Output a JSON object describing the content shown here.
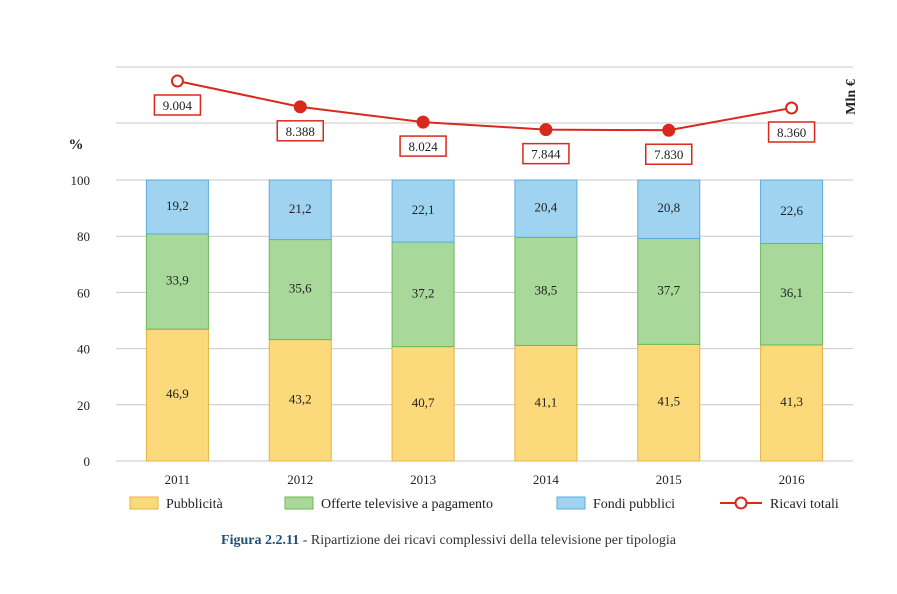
{
  "chart_data": {
    "type": "bar",
    "stacked": true,
    "categories": [
      "2011",
      "2012",
      "2013",
      "2014",
      "2015",
      "2016"
    ],
    "series": [
      {
        "name": "Pubblicità",
        "color": "#fcd97a",
        "stroke": "#e3b340",
        "values": [
          46.9,
          43.2,
          40.7,
          41.1,
          41.5,
          41.3
        ],
        "labels": [
          "46,9",
          "43,2",
          "40,7",
          "41,1",
          "41,5",
          "41,3"
        ]
      },
      {
        "name": "Offerte televisive a pagamento",
        "color": "#a8d89a",
        "stroke": "#6cb95a",
        "values": [
          33.9,
          35.6,
          37.2,
          38.5,
          37.7,
          36.1
        ],
        "labels": [
          "33,9",
          "35,6",
          "37,2",
          "38,5",
          "37,7",
          "36,1"
        ]
      },
      {
        "name": "Fondi pubblici",
        "color": "#9fd3f0",
        "stroke": "#5aaedc",
        "values": [
          19.2,
          21.2,
          22.1,
          20.4,
          20.8,
          22.6
        ],
        "labels": [
          "19,2",
          "21,2",
          "22,1",
          "20,4",
          "20,8",
          "22,6"
        ]
      }
    ],
    "line": {
      "name": "Ricavi totali",
      "color": "#d9291c",
      "values": [
        9004,
        8388,
        8024,
        7844,
        7830,
        8360
      ],
      "labels": [
        "9.004",
        "8.388",
        "8.024",
        "7.844",
        "7.830",
        "8.360"
      ],
      "hollow_markers": [
        true,
        false,
        false,
        false,
        false,
        true
      ]
    },
    "ylabel": "%",
    "y2label": "Mln €",
    "ylim": [
      0,
      100
    ],
    "yticks": [
      "0",
      "20",
      "40",
      "60",
      "80",
      "100"
    ],
    "grid": true,
    "legend": "bottom"
  },
  "caption": {
    "figure": "Figura 2.2.11",
    "text": " - Ripartizione dei ricavi complessivi della televisione per tipologia"
  }
}
